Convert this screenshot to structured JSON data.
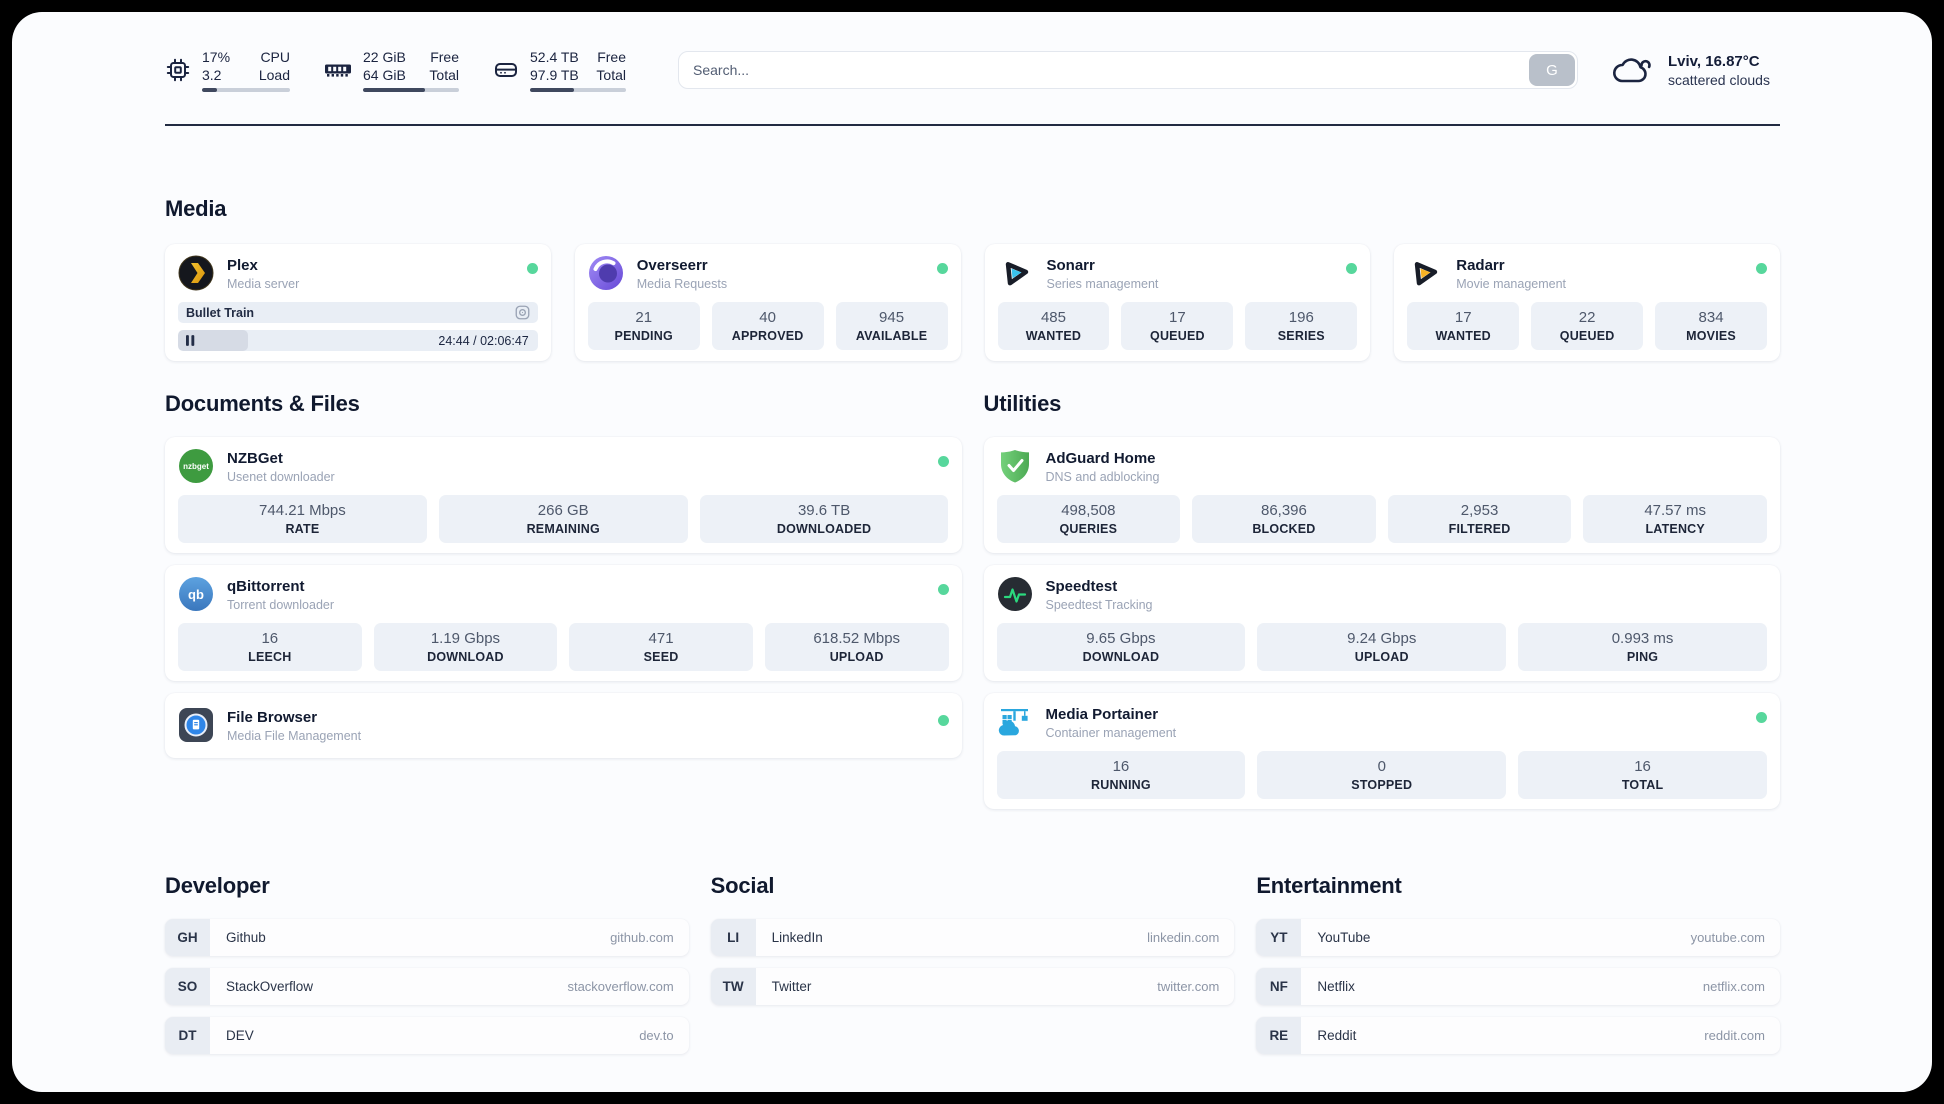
{
  "topbar": {
    "cpu": {
      "value_top": "17%",
      "value_bottom": "3.2",
      "label_top": "CPU",
      "label_bottom": "Load",
      "progress_pct": 17
    },
    "ram": {
      "value_top": "22 GiB",
      "value_bottom": "64 GiB",
      "label_top": "Free",
      "label_bottom": "Total",
      "progress_pct": 65
    },
    "disk": {
      "value_top": "52.4 TB",
      "value_bottom": "97.9 TB",
      "label_top": "Free",
      "label_bottom": "Total",
      "progress_pct": 46
    },
    "search": {
      "placeholder": "Search...",
      "button": "G"
    },
    "weather": {
      "line1": "Lviv, 16.87°C",
      "line2": "scattered clouds"
    }
  },
  "sections": {
    "media": {
      "title": "Media"
    },
    "documents": {
      "title": "Documents & Files"
    },
    "utilities": {
      "title": "Utilities"
    },
    "developer": {
      "title": "Developer"
    },
    "social": {
      "title": "Social"
    },
    "entertainment": {
      "title": "Entertainment"
    }
  },
  "apps": {
    "plex": {
      "name": "Plex",
      "desc": "Media server",
      "now_playing": "Bullet Train",
      "time": "24:44 / 02:06:47",
      "progress_pct": 19.5
    },
    "overseerr": {
      "name": "Overseerr",
      "desc": "Media Requests",
      "stats": [
        {
          "value": "21",
          "label": "PENDING"
        },
        {
          "value": "40",
          "label": "APPROVED"
        },
        {
          "value": "945",
          "label": "AVAILABLE"
        }
      ]
    },
    "sonarr": {
      "name": "Sonarr",
      "desc": "Series management",
      "stats": [
        {
          "value": "485",
          "label": "WANTED"
        },
        {
          "value": "17",
          "label": "QUEUED"
        },
        {
          "value": "196",
          "label": "SERIES"
        }
      ]
    },
    "radarr": {
      "name": "Radarr",
      "desc": "Movie management",
      "stats": [
        {
          "value": "17",
          "label": "WANTED"
        },
        {
          "value": "22",
          "label": "QUEUED"
        },
        {
          "value": "834",
          "label": "MOVIES"
        }
      ]
    },
    "nzbget": {
      "name": "NZBGet",
      "desc": "Usenet downloader",
      "stats": [
        {
          "value": "744.21 Mbps",
          "label": "RATE"
        },
        {
          "value": "266 GB",
          "label": "REMAINING"
        },
        {
          "value": "39.6 TB",
          "label": "DOWNLOADED"
        }
      ]
    },
    "qbittorrent": {
      "name": "qBittorrent",
      "desc": "Torrent downloader",
      "stats": [
        {
          "value": "16",
          "label": "LEECH"
        },
        {
          "value": "1.19 Gbps",
          "label": "DOWNLOAD"
        },
        {
          "value": "471",
          "label": "SEED"
        },
        {
          "value": "618.52 Mbps",
          "label": "UPLOAD"
        }
      ]
    },
    "filebrowser": {
      "name": "File Browser",
      "desc": "Media File Management"
    },
    "adguard": {
      "name": "AdGuard Home",
      "desc": "DNS and adblocking",
      "stats": [
        {
          "value": "498,508",
          "label": "QUERIES"
        },
        {
          "value": "86,396",
          "label": "BLOCKED"
        },
        {
          "value": "2,953",
          "label": "FILTERED"
        },
        {
          "value": "47.57 ms",
          "label": "LATENCY"
        }
      ]
    },
    "speedtest": {
      "name": "Speedtest",
      "desc": "Speedtest Tracking",
      "stats": [
        {
          "value": "9.65 Gbps",
          "label": "DOWNLOAD"
        },
        {
          "value": "9.24 Gbps",
          "label": "UPLOAD"
        },
        {
          "value": "0.993 ms",
          "label": "PING"
        }
      ]
    },
    "portainer": {
      "name": "Media Portainer",
      "desc": "Container management",
      "stats": [
        {
          "value": "16",
          "label": "RUNNING"
        },
        {
          "value": "0",
          "label": "STOPPED"
        },
        {
          "value": "16",
          "label": "TOTAL"
        }
      ]
    }
  },
  "bookmarks": {
    "developer": [
      {
        "abbr": "GH",
        "name": "Github",
        "url": "github.com"
      },
      {
        "abbr": "SO",
        "name": "StackOverflow",
        "url": "stackoverflow.com"
      },
      {
        "abbr": "DT",
        "name": "DEV",
        "url": "dev.to"
      }
    ],
    "social": [
      {
        "abbr": "LI",
        "name": "LinkedIn",
        "url": "linkedin.com"
      },
      {
        "abbr": "TW",
        "name": "Twitter",
        "url": "twitter.com"
      }
    ],
    "entertainment": [
      {
        "abbr": "YT",
        "name": "YouTube",
        "url": "youtube.com"
      },
      {
        "abbr": "NF",
        "name": "Netflix",
        "url": "netflix.com"
      },
      {
        "abbr": "RE",
        "name": "Reddit",
        "url": "reddit.com"
      }
    ]
  },
  "colors": {
    "status_online": "#57d79c",
    "progress_fill": "#3f485e",
    "accent_dark": "#1b2440"
  }
}
